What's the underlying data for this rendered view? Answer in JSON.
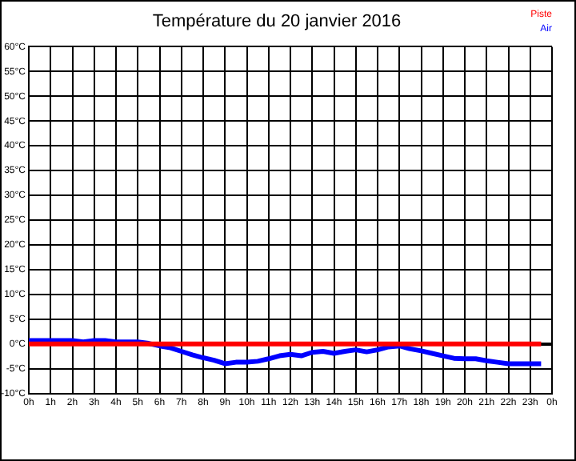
{
  "chart_data": {
    "type": "line",
    "title": "Température du 20 janvier 2016",
    "x": [
      "2016-01-20T00:00",
      "2016-01-20T00:30",
      "2016-01-20T01:00",
      "2016-01-20T01:30",
      "2016-01-20T02:00",
      "2016-01-20T02:30",
      "2016-01-20T03:00",
      "2016-01-20T03:30",
      "2016-01-20T04:00",
      "2016-01-20T04:30",
      "2016-01-20T05:00",
      "2016-01-20T05:30",
      "2016-01-20T06:00",
      "2016-01-20T06:30",
      "2016-01-20T07:00",
      "2016-01-20T07:30",
      "2016-01-20T08:00",
      "2016-01-20T08:30",
      "2016-01-20T09:00",
      "2016-01-20T09:30",
      "2016-01-20T10:00",
      "2016-01-20T10:30",
      "2016-01-20T11:00",
      "2016-01-20T11:30",
      "2016-01-20T12:00",
      "2016-01-20T12:30",
      "2016-01-20T13:00",
      "2016-01-20T13:30",
      "2016-01-20T14:00",
      "2016-01-20T14:30",
      "2016-01-20T15:00",
      "2016-01-20T15:30",
      "2016-01-20T16:00",
      "2016-01-20T16:30",
      "2016-01-20T17:00",
      "2016-01-20T17:30",
      "2016-01-20T18:00",
      "2016-01-20T18:30",
      "2016-01-20T19:00",
      "2016-01-20T19:30",
      "2016-01-20T20:00",
      "2016-01-20T20:30",
      "2016-01-20T21:00",
      "2016-01-20T21:30",
      "2016-01-20T22:00",
      "2016-01-20T22:30",
      "2016-01-20T23:00",
      "2016-01-20T23:30"
    ],
    "series": [
      {
        "name": "Piste",
        "color": "#ff0000",
        "values": [
          0,
          0,
          0,
          0,
          0,
          0,
          0,
          0,
          0,
          0,
          0,
          0,
          0,
          0,
          0,
          0,
          0,
          0,
          0,
          0,
          0,
          0,
          0,
          0,
          0,
          0,
          0,
          0,
          0,
          0,
          0,
          0,
          0,
          0,
          0,
          0,
          0,
          0,
          0,
          0,
          0,
          0,
          0,
          0,
          0,
          0,
          0,
          0
        ]
      },
      {
        "name": "Air",
        "color": "#0000ff",
        "values": [
          0.7,
          0.7,
          0.7,
          0.7,
          0.7,
          0.4,
          0.7,
          0.7,
          0.4,
          0.4,
          0.4,
          0.1,
          -0.4,
          -0.8,
          -1.5,
          -2.2,
          -2.8,
          -3.3,
          -4.0,
          -3.7,
          -3.7,
          -3.5,
          -3.0,
          -2.4,
          -2.1,
          -2.4,
          -1.7,
          -1.5,
          -1.9,
          -1.5,
          -1.2,
          -1.6,
          -1.2,
          -0.6,
          -0.4,
          -1.0,
          -1.4,
          -1.9,
          -2.4,
          -2.9,
          -3.0,
          -3.0,
          -3.4,
          -3.7,
          -4.0,
          -4.0,
          -4.0,
          -4.0
        ]
      }
    ],
    "xlim": [
      "2016-01-20T00:00",
      "2016-01-21T00:00"
    ],
    "xticks": [
      {
        "value": "2016-01-20T00:00",
        "label": "0h"
      },
      {
        "value": "2016-01-20T01:00",
        "label": "1h"
      },
      {
        "value": "2016-01-20T02:00",
        "label": "2h"
      },
      {
        "value": "2016-01-20T03:00",
        "label": "3h"
      },
      {
        "value": "2016-01-20T04:00",
        "label": "4h"
      },
      {
        "value": "2016-01-20T05:00",
        "label": "5h"
      },
      {
        "value": "2016-01-20T06:00",
        "label": "6h"
      },
      {
        "value": "2016-01-20T07:00",
        "label": "7h"
      },
      {
        "value": "2016-01-20T08:00",
        "label": "8h"
      },
      {
        "value": "2016-01-20T09:00",
        "label": "9h"
      },
      {
        "value": "2016-01-20T10:00",
        "label": "10h"
      },
      {
        "value": "2016-01-20T11:00",
        "label": "11h"
      },
      {
        "value": "2016-01-20T12:00",
        "label": "12h"
      },
      {
        "value": "2016-01-20T13:00",
        "label": "13h"
      },
      {
        "value": "2016-01-20T14:00",
        "label": "14h"
      },
      {
        "value": "2016-01-20T15:00",
        "label": "15h"
      },
      {
        "value": "2016-01-20T16:00",
        "label": "16h"
      },
      {
        "value": "2016-01-20T17:00",
        "label": "17h"
      },
      {
        "value": "2016-01-20T18:00",
        "label": "18h"
      },
      {
        "value": "2016-01-20T19:00",
        "label": "19h"
      },
      {
        "value": "2016-01-20T20:00",
        "label": "20h"
      },
      {
        "value": "2016-01-20T21:00",
        "label": "21h"
      },
      {
        "value": "2016-01-20T22:00",
        "label": "22h"
      },
      {
        "value": "2016-01-20T23:00",
        "label": "23h"
      },
      {
        "value": "2016-01-21T00:00",
        "label": "0h"
      }
    ],
    "ylim": [
      -10,
      60
    ],
    "yticks": [
      {
        "value": -10,
        "label": "-10°C"
      },
      {
        "value": -5,
        "label": "-5°C"
      },
      {
        "value": 0,
        "label": "0°C"
      },
      {
        "value": 5,
        "label": "5°C"
      },
      {
        "value": 10,
        "label": "10°C"
      },
      {
        "value": 15,
        "label": "15°C"
      },
      {
        "value": 20,
        "label": "20°C"
      },
      {
        "value": 25,
        "label": "25°C"
      },
      {
        "value": 30,
        "label": "30°C"
      },
      {
        "value": 35,
        "label": "35°C"
      },
      {
        "value": 40,
        "label": "40°C"
      },
      {
        "value": 45,
        "label": "45°C"
      },
      {
        "value": 50,
        "label": "50°C"
      },
      {
        "value": 55,
        "label": "55°C"
      },
      {
        "value": 60,
        "label": "60°C"
      }
    ],
    "grid": true,
    "legend": "top right",
    "marker": "none",
    "line_style": "solid"
  }
}
